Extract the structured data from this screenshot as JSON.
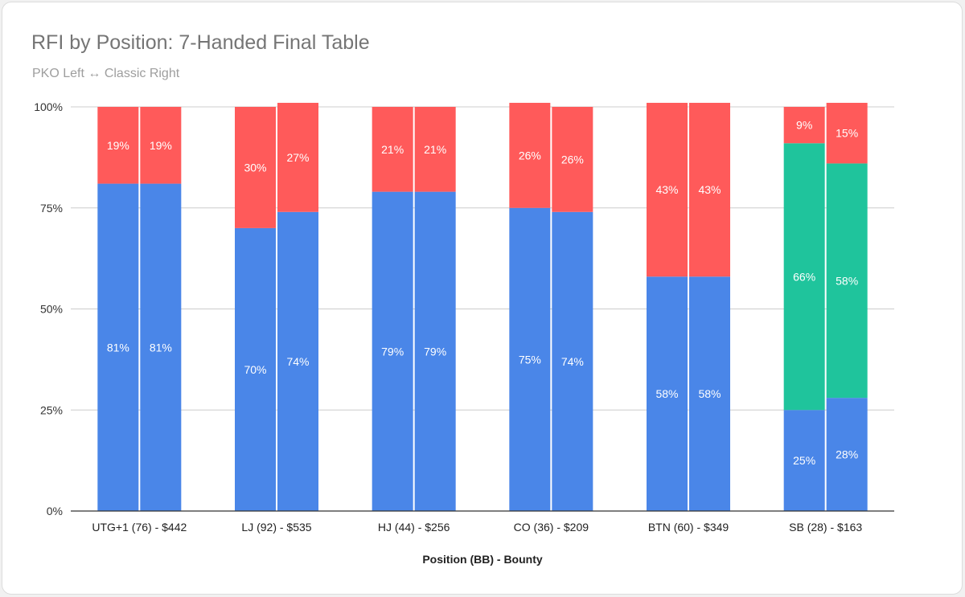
{
  "chart_data": {
    "type": "bar",
    "stacked": true,
    "percent_stacked": true,
    "title": "RFI by Position: 7-Handed Final Table",
    "subtitle": "PKO Left ↔ Classic Right",
    "xlabel": "Position (BB) - Bounty",
    "ylabel": "",
    "ylim": [
      0,
      100
    ],
    "yticks": [
      "0%",
      "25%",
      "50%",
      "75%",
      "100%"
    ],
    "grid": true,
    "legend": "none",
    "categories": [
      "UTG+1 (76) - $442",
      "LJ (92) - $535",
      "HJ (44) - $256",
      "CO (36) - $209",
      "BTN (60) - $349",
      "SB (28) - $163"
    ],
    "bars_per_category": 2,
    "series": [
      {
        "color": "#4a86e8",
        "values": [
          [
            81,
            81
          ],
          [
            70,
            74
          ],
          [
            79,
            79
          ],
          [
            75,
            74
          ],
          [
            58,
            58
          ],
          [
            25,
            28
          ]
        ],
        "labels": [
          [
            "81%",
            "81%"
          ],
          [
            "70%",
            "74%"
          ],
          [
            "79%",
            "79%"
          ],
          [
            "75%",
            "74%"
          ],
          [
            "58%",
            "58%"
          ],
          [
            "25%",
            "28%"
          ]
        ]
      },
      {
        "color": "#1fc49c",
        "values": [
          [
            0,
            0
          ],
          [
            0,
            0
          ],
          [
            0,
            0
          ],
          [
            0,
            0
          ],
          [
            0,
            0
          ],
          [
            66,
            58
          ]
        ],
        "labels": [
          [
            "",
            ""
          ],
          [
            "",
            ""
          ],
          [
            "",
            ""
          ],
          [
            "",
            ""
          ],
          [
            "",
            ""
          ],
          [
            "66%",
            "58%"
          ]
        ]
      },
      {
        "color": "#ff5a5a",
        "values": [
          [
            19,
            19
          ],
          [
            30,
            27
          ],
          [
            21,
            21
          ],
          [
            26,
            26
          ],
          [
            43,
            43
          ],
          [
            9,
            15
          ]
        ],
        "labels": [
          [
            "19%",
            "19%"
          ],
          [
            "30%",
            "27%"
          ],
          [
            "21%",
            "21%"
          ],
          [
            "26%",
            "26%"
          ],
          [
            "43%",
            "43%"
          ],
          [
            "9%",
            "15%"
          ]
        ]
      }
    ]
  }
}
